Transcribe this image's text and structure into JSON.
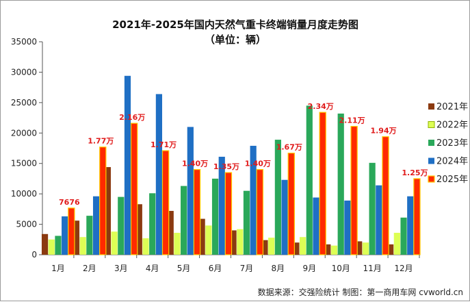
{
  "chart_data": {
    "type": "bar",
    "title": "2021年-2025年国内天然气重卡终端销量月度走势图",
    "subtitle": "（单位：辆）",
    "categories": [
      "1月",
      "2月",
      "3月",
      "4月",
      "5月",
      "6月",
      "7月",
      "8月",
      "9月",
      "10月",
      "11月",
      "12月"
    ],
    "yticks": [
      "0",
      "5000",
      "10000",
      "15000",
      "20000",
      "25000",
      "30000",
      "35000"
    ],
    "ylim": [
      0,
      35000
    ],
    "grid": false,
    "legend_position": "right",
    "series": [
      {
        "name": "2021年",
        "color": "#8b3a10",
        "values": [
          3400,
          5600,
          14400,
          8300,
          7200,
          5900,
          4000,
          2400,
          2000,
          1700,
          2200,
          1700
        ]
      },
      {
        "name": "2022年",
        "color": "#ddff55",
        "values": [
          2500,
          2900,
          3800,
          2700,
          3600,
          4800,
          4200,
          2800,
          2900,
          1500,
          2000,
          3600
        ]
      },
      {
        "name": "2023年",
        "color": "#2aa85a",
        "values": [
          3100,
          6400,
          9500,
          10100,
          11300,
          12500,
          10500,
          18900,
          24500,
          23200,
          15100,
          6100
        ]
      },
      {
        "name": "2024年",
        "color": "#1f6fc4",
        "values": [
          6300,
          9600,
          29400,
          26400,
          21000,
          16100,
          17900,
          12300,
          9400,
          8900,
          11400,
          9600
        ]
      },
      {
        "name": "2025年",
        "color": "#ff2a00",
        "values": [
          7676,
          17700,
          21600,
          17100,
          14000,
          13500,
          14000,
          16700,
          23400,
          21100,
          19400,
          12500
        ]
      }
    ],
    "data_labels": [
      "7676",
      "1.77万",
      "2.16万",
      "1.71万",
      "1.40万",
      "1.35万",
      "1.40万",
      "1.67万",
      "2.34万",
      "2.11万",
      "1.94万",
      "1.25万"
    ]
  },
  "source_text": "数据来源：交强险统计   制图：第一商用车网 cvworld.cn"
}
